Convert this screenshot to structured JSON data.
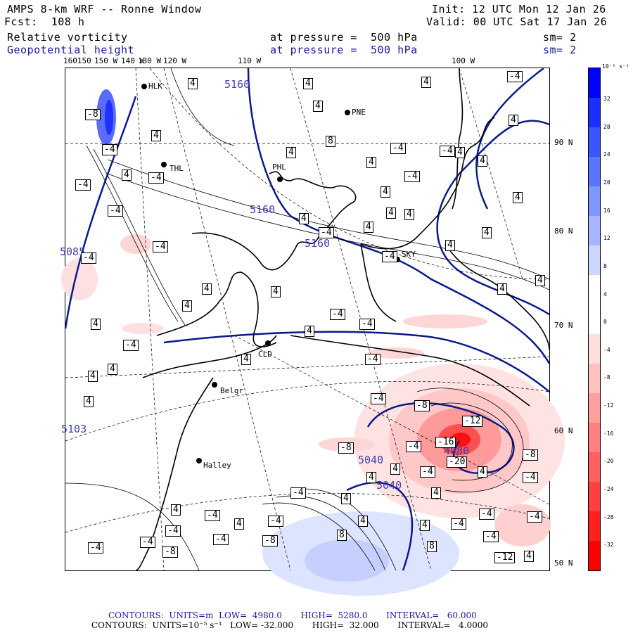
{
  "header": {
    "model": "AMPS 8-km WRF -- Ronne Window",
    "forecast": "Fcst:  108 h",
    "init": "Init: 12 UTC Mon 12 Jan 26",
    "valid": "Valid: 00 UTC Sat 17 Jan 26",
    "field1": "Relative vorticity",
    "field1_level": "at pressure =  500 hPa",
    "field1_sm": "sm= 2",
    "field2": "Geopotential height",
    "field2_level": "at pressure =  500 hPa",
    "field2_sm": "sm= 2"
  },
  "longitude_labels": [
    "160150",
    "150 W",
    "140 W",
    "130 W",
    "120 W",
    "110 W",
    "100 W"
  ],
  "latitude_labels": [
    "90 N",
    "80 N",
    "70 N",
    "60 N",
    "50 N"
  ],
  "stations": [
    "HLK",
    "PNE",
    "THL",
    "PHL",
    "SKY",
    "CLD",
    "Belgr",
    "Halley"
  ],
  "height_labels": [
    "5160",
    "5160",
    "5160",
    "5040",
    "5040",
    "4980",
    "5085",
    "5103"
  ],
  "vorticity_labels": [
    "-8",
    "-4",
    "4",
    "8",
    "-12",
    "-16",
    "-20"
  ],
  "colorbar": {
    "unit": "10⁻⁵ s⁻¹",
    "ticks": [
      "32",
      "28",
      "24",
      "20",
      "16",
      "12",
      "8",
      "4",
      "0",
      "-4",
      "-8",
      "-12",
      "-16",
      "-20",
      "-24",
      "-28",
      "-32"
    ],
    "colors": [
      "#0000ff",
      "#1a30ff",
      "#3b55ff",
      "#5a75ff",
      "#7f95ff",
      "#a5b5ff",
      "#cdd6ff",
      "#ffffff",
      "#ffffff",
      "#ffdede",
      "#ffc0c0",
      "#ffa0a0",
      "#ff8080",
      "#ff6060",
      "#ff4040",
      "#ff2020",
      "#ff0000"
    ]
  },
  "footer": {
    "line1": "CONTOURS:  UNITS=m  LOW=  4980.0       HIGH=  5280.0       INTERVAL=   60.000",
    "line2": "CONTOURS:  UNITS=10⁻⁵ s⁻¹   LOW= -32.000       HIGH=  32.000       INTERVAL=   4.0000"
  }
}
